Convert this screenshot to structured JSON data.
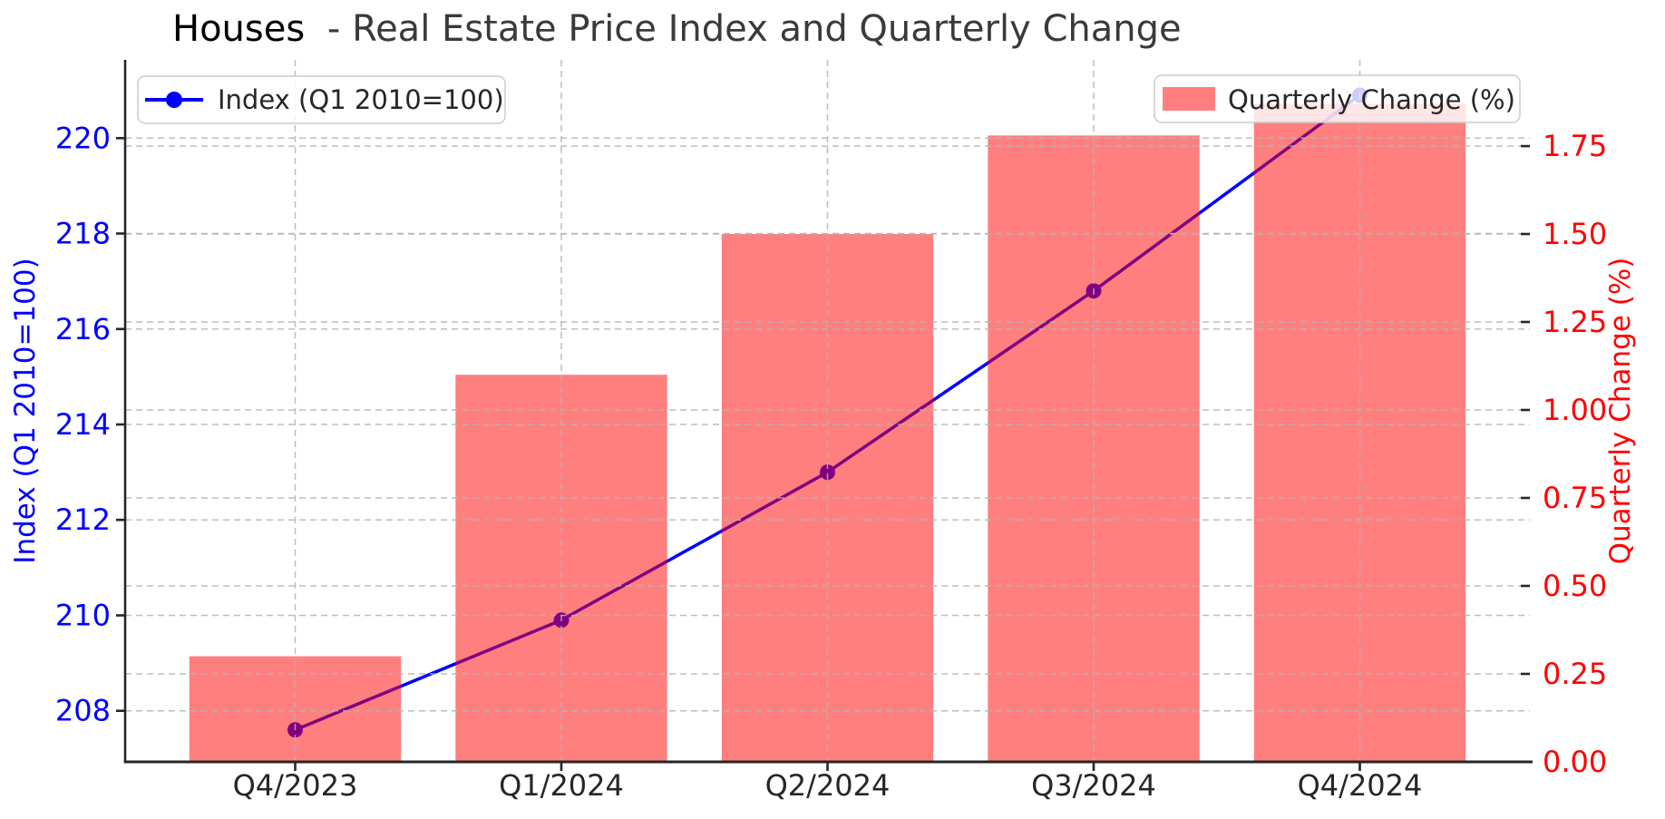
{
  "title": {
    "prefix": "Houses",
    "rest": "- Real Estate Price Index and Quarterly Change",
    "prefix_color": "#000000",
    "rest_color": "#3a3a3a"
  },
  "left_axis": {
    "label": "Index (Q1 2010=100)",
    "color": "#0000ff",
    "ticks": [
      208,
      210,
      212,
      214,
      216,
      218,
      220
    ],
    "tick_labels": [
      "208",
      "210",
      "212",
      "214",
      "216",
      "218",
      "220"
    ],
    "range": [
      206.93,
      221.64
    ]
  },
  "right_axis": {
    "label": "Quarterly Change (%)",
    "color": "#ff0000",
    "ticks": [
      0,
      0.25,
      0.5,
      0.75,
      1.0,
      1.25,
      1.5,
      1.75
    ],
    "tick_labels": [
      "0.00",
      "0.25",
      "0.50",
      "0.75",
      "1.00",
      "1.25",
      "1.50",
      "1.75"
    ],
    "range": [
      0,
      1.995
    ]
  },
  "x_axis": {
    "categories": [
      "Q4/2023",
      "Q1/2024",
      "Q2/2024",
      "Q3/2024",
      "Q4/2024"
    ],
    "tick_color": "#262626"
  },
  "legends": {
    "line_label": "Index (Q1 2010=100)",
    "bar_label": "Quarterly Change (%)"
  },
  "colors": {
    "line": "#0000ff",
    "line_over_bar": "#800080",
    "bar": "#ff0000",
    "bar_alpha": 0.5,
    "bar_composite_over_white": "#ff8080",
    "grid": "#b3b3b3",
    "spine": "#262626",
    "background": "#ffffff"
  },
  "chart_data": {
    "type": "combo",
    "categories": [
      "Q4/2023",
      "Q1/2024",
      "Q2/2024",
      "Q3/2024",
      "Q4/2024"
    ],
    "series": [
      {
        "name": "Index (Q1 2010=100)",
        "type": "line",
        "axis": "left",
        "color": "#0000ff",
        "marker": "circle",
        "values": [
          207.6,
          209.9,
          213.0,
          216.8,
          220.9
        ]
      },
      {
        "name": "Quarterly Change (%)",
        "type": "bar",
        "axis": "right",
        "color": "#ff0000",
        "opacity": 0.5,
        "values": [
          0.3,
          1.1,
          1.5,
          1.78,
          1.87
        ]
      }
    ],
    "title": "Houses - Real Estate Price Index and Quarterly Change",
    "xlabel": "",
    "ylabel_left": "Index (Q1 2010=100)",
    "ylabel_right": "Quarterly Change (%)",
    "ylim_left": [
      206.93,
      221.64
    ],
    "ylim_right": [
      0,
      1.995
    ],
    "grid": true,
    "grid_style": "dashed",
    "legend_positions": [
      "upper left",
      "upper right"
    ]
  }
}
